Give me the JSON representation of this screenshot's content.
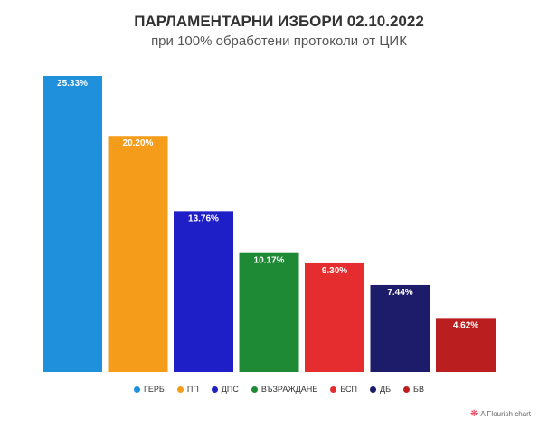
{
  "chart_data": {
    "type": "bar",
    "title": "ПАРЛАМЕНТАРНИ ИЗБОРИ 02.10.2022",
    "subtitle": "при 100% обработени протоколи от ЦИК",
    "categories": [
      "ГЕРБ",
      "ПП",
      "ДПС",
      "ВЪЗРАЖДАНЕ",
      "БСП",
      "ДБ",
      "БВ"
    ],
    "values": [
      25.33,
      20.2,
      13.76,
      10.17,
      9.3,
      7.44,
      4.62
    ],
    "labels": [
      "25.33%",
      "20.20%",
      "13.76%",
      "10.17%",
      "9.30%",
      "7.44%",
      "4.62%"
    ],
    "colors": [
      "#1e90dc",
      "#f59c1a",
      "#1f1fc8",
      "#1f8a35",
      "#e52d30",
      "#1c1c6a",
      "#bb1e1e"
    ],
    "ylim": [
      0,
      25.33
    ],
    "grid": false,
    "legend": "bottom"
  },
  "credit": "A Flourish chart",
  "credit_icon": "flourish-logo-icon"
}
